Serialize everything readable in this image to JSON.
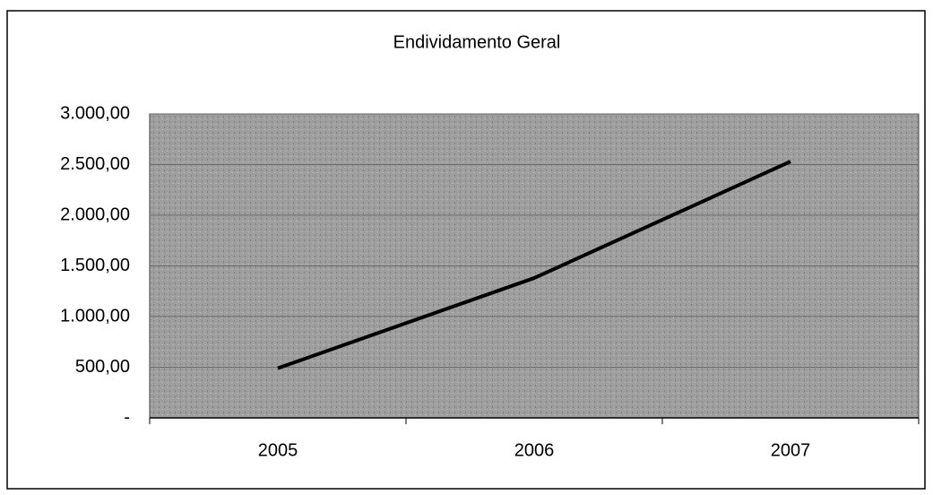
{
  "chart_data": {
    "type": "line",
    "title": "Endividamento Geral",
    "categories": [
      "2005",
      "2006",
      "2007"
    ],
    "series": [
      {
        "name": "Endividamento Geral",
        "color": "#000000",
        "values": [
          490,
          1380,
          2530
        ]
      }
    ],
    "ylim": [
      0,
      3000
    ],
    "yticks": [
      {
        "value": 0,
        "label": "-"
      },
      {
        "value": 500,
        "label": "500,00"
      },
      {
        "value": 1000,
        "label": "1.000,00"
      },
      {
        "value": 1500,
        "label": "1.500,00"
      },
      {
        "value": 2000,
        "label": "2.000,00"
      },
      {
        "value": 2500,
        "label": "2.500,00"
      },
      {
        "value": 3000,
        "label": "3.000,00"
      }
    ],
    "grid": true,
    "plot_color": "#9e9e9e"
  }
}
